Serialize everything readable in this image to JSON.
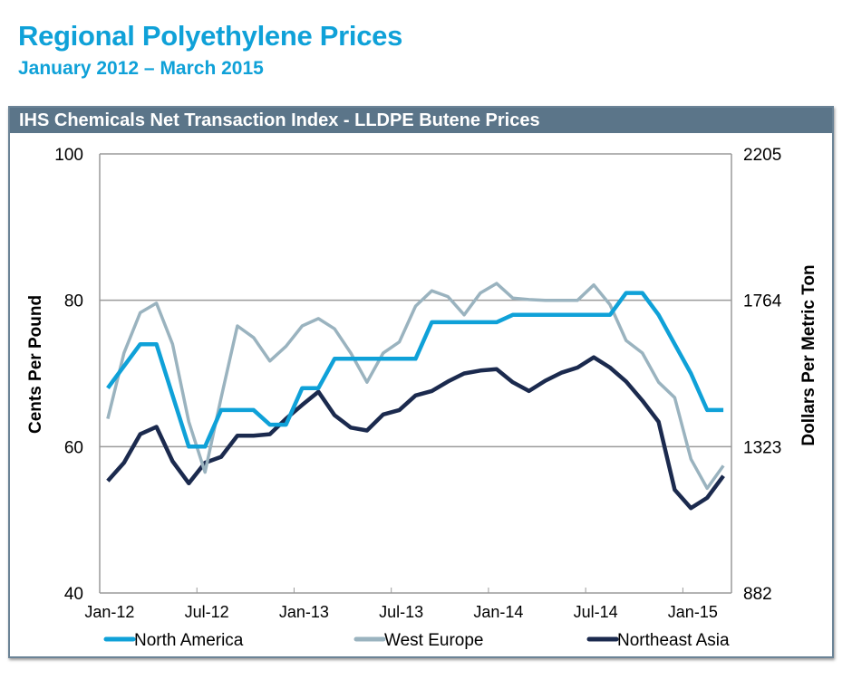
{
  "header": {
    "title": "Regional Polyethylene Prices",
    "subtitle": "January 2012 – March 2015"
  },
  "chart_data": {
    "type": "line",
    "title": "IHS Chemicals Net Transaction  Index -  LLDPE Butene Prices",
    "ylabel": "Cents Per Pound",
    "y2label": "Dollars Per Metric Ton",
    "ylim": [
      40,
      100
    ],
    "yticks": [
      40,
      60,
      80,
      100
    ],
    "y2ticks": [
      "882",
      "1323",
      "1764",
      "2205"
    ],
    "xtick_labels": [
      {
        "label": "Jan-12",
        "index": 0
      },
      {
        "label": "Jul-12",
        "index": 6
      },
      {
        "label": "Jan-13",
        "index": 12
      },
      {
        "label": "Jul-13",
        "index": 18
      },
      {
        "label": "Jan-14",
        "index": 24
      },
      {
        "label": "Jul-14",
        "index": 30
      },
      {
        "label": "Jan-15",
        "index": 36
      }
    ],
    "x": [
      "Jan-12",
      "Feb-12",
      "Mar-12",
      "Apr-12",
      "May-12",
      "Jun-12",
      "Jul-12",
      "Aug-12",
      "Sep-12",
      "Oct-12",
      "Nov-12",
      "Dec-12",
      "Jan-13",
      "Feb-13",
      "Mar-13",
      "Apr-13",
      "May-13",
      "Jun-13",
      "Jul-13",
      "Aug-13",
      "Sep-13",
      "Oct-13",
      "Nov-13",
      "Dec-13",
      "Jan-14",
      "Feb-14",
      "Mar-14",
      "Apr-14",
      "May-14",
      "Jun-14",
      "Jul-14",
      "Aug-14",
      "Sep-14",
      "Oct-14",
      "Nov-14",
      "Dec-14",
      "Jan-15",
      "Feb-15",
      "Mar-15"
    ],
    "grid": "horizontal",
    "legend_position": "bottom",
    "series": [
      {
        "name": "North  America",
        "color": "#0fa1d8",
        "values": [
          68,
          71,
          74,
          74,
          67,
          60,
          60,
          65,
          65,
          65,
          63,
          63,
          68,
          68,
          72,
          72,
          72,
          72,
          72,
          72,
          77,
          77,
          77,
          77,
          77,
          78,
          78,
          78,
          78,
          78,
          78,
          78,
          81,
          81,
          78,
          74,
          70,
          65,
          65
        ]
      },
      {
        "name": "West Europe",
        "color": "#9ab3bf",
        "values": [
          63.8,
          72.8,
          78.3,
          79.6,
          74,
          63.4,
          56.5,
          66.7,
          76.5,
          74.9,
          71.7,
          73.7,
          76.5,
          77.5,
          76.1,
          72.8,
          68.8,
          72.8,
          74.3,
          79.2,
          81.3,
          80.5,
          78,
          81,
          82.3,
          80.3,
          80.1,
          80,
          80,
          80,
          82.1,
          79.4,
          74.5,
          72.8,
          68.8,
          66.7,
          58.3,
          54.3,
          57.4
        ]
      },
      {
        "name": "Northeast Asia",
        "color": "#1b2a4e",
        "values": [
          55.3,
          57.8,
          61.7,
          62.7,
          58,
          55,
          57.8,
          58.6,
          61.5,
          61.5,
          61.7,
          63.8,
          65.7,
          67.5,
          64.3,
          62.6,
          62.2,
          64.4,
          65,
          67,
          67.6,
          68.9,
          70,
          70.4,
          70.6,
          68.8,
          67.6,
          69,
          70.1,
          70.8,
          72.2,
          70.8,
          68.9,
          66.3,
          63.4,
          54.1,
          51.6,
          53,
          56
        ]
      }
    ]
  }
}
